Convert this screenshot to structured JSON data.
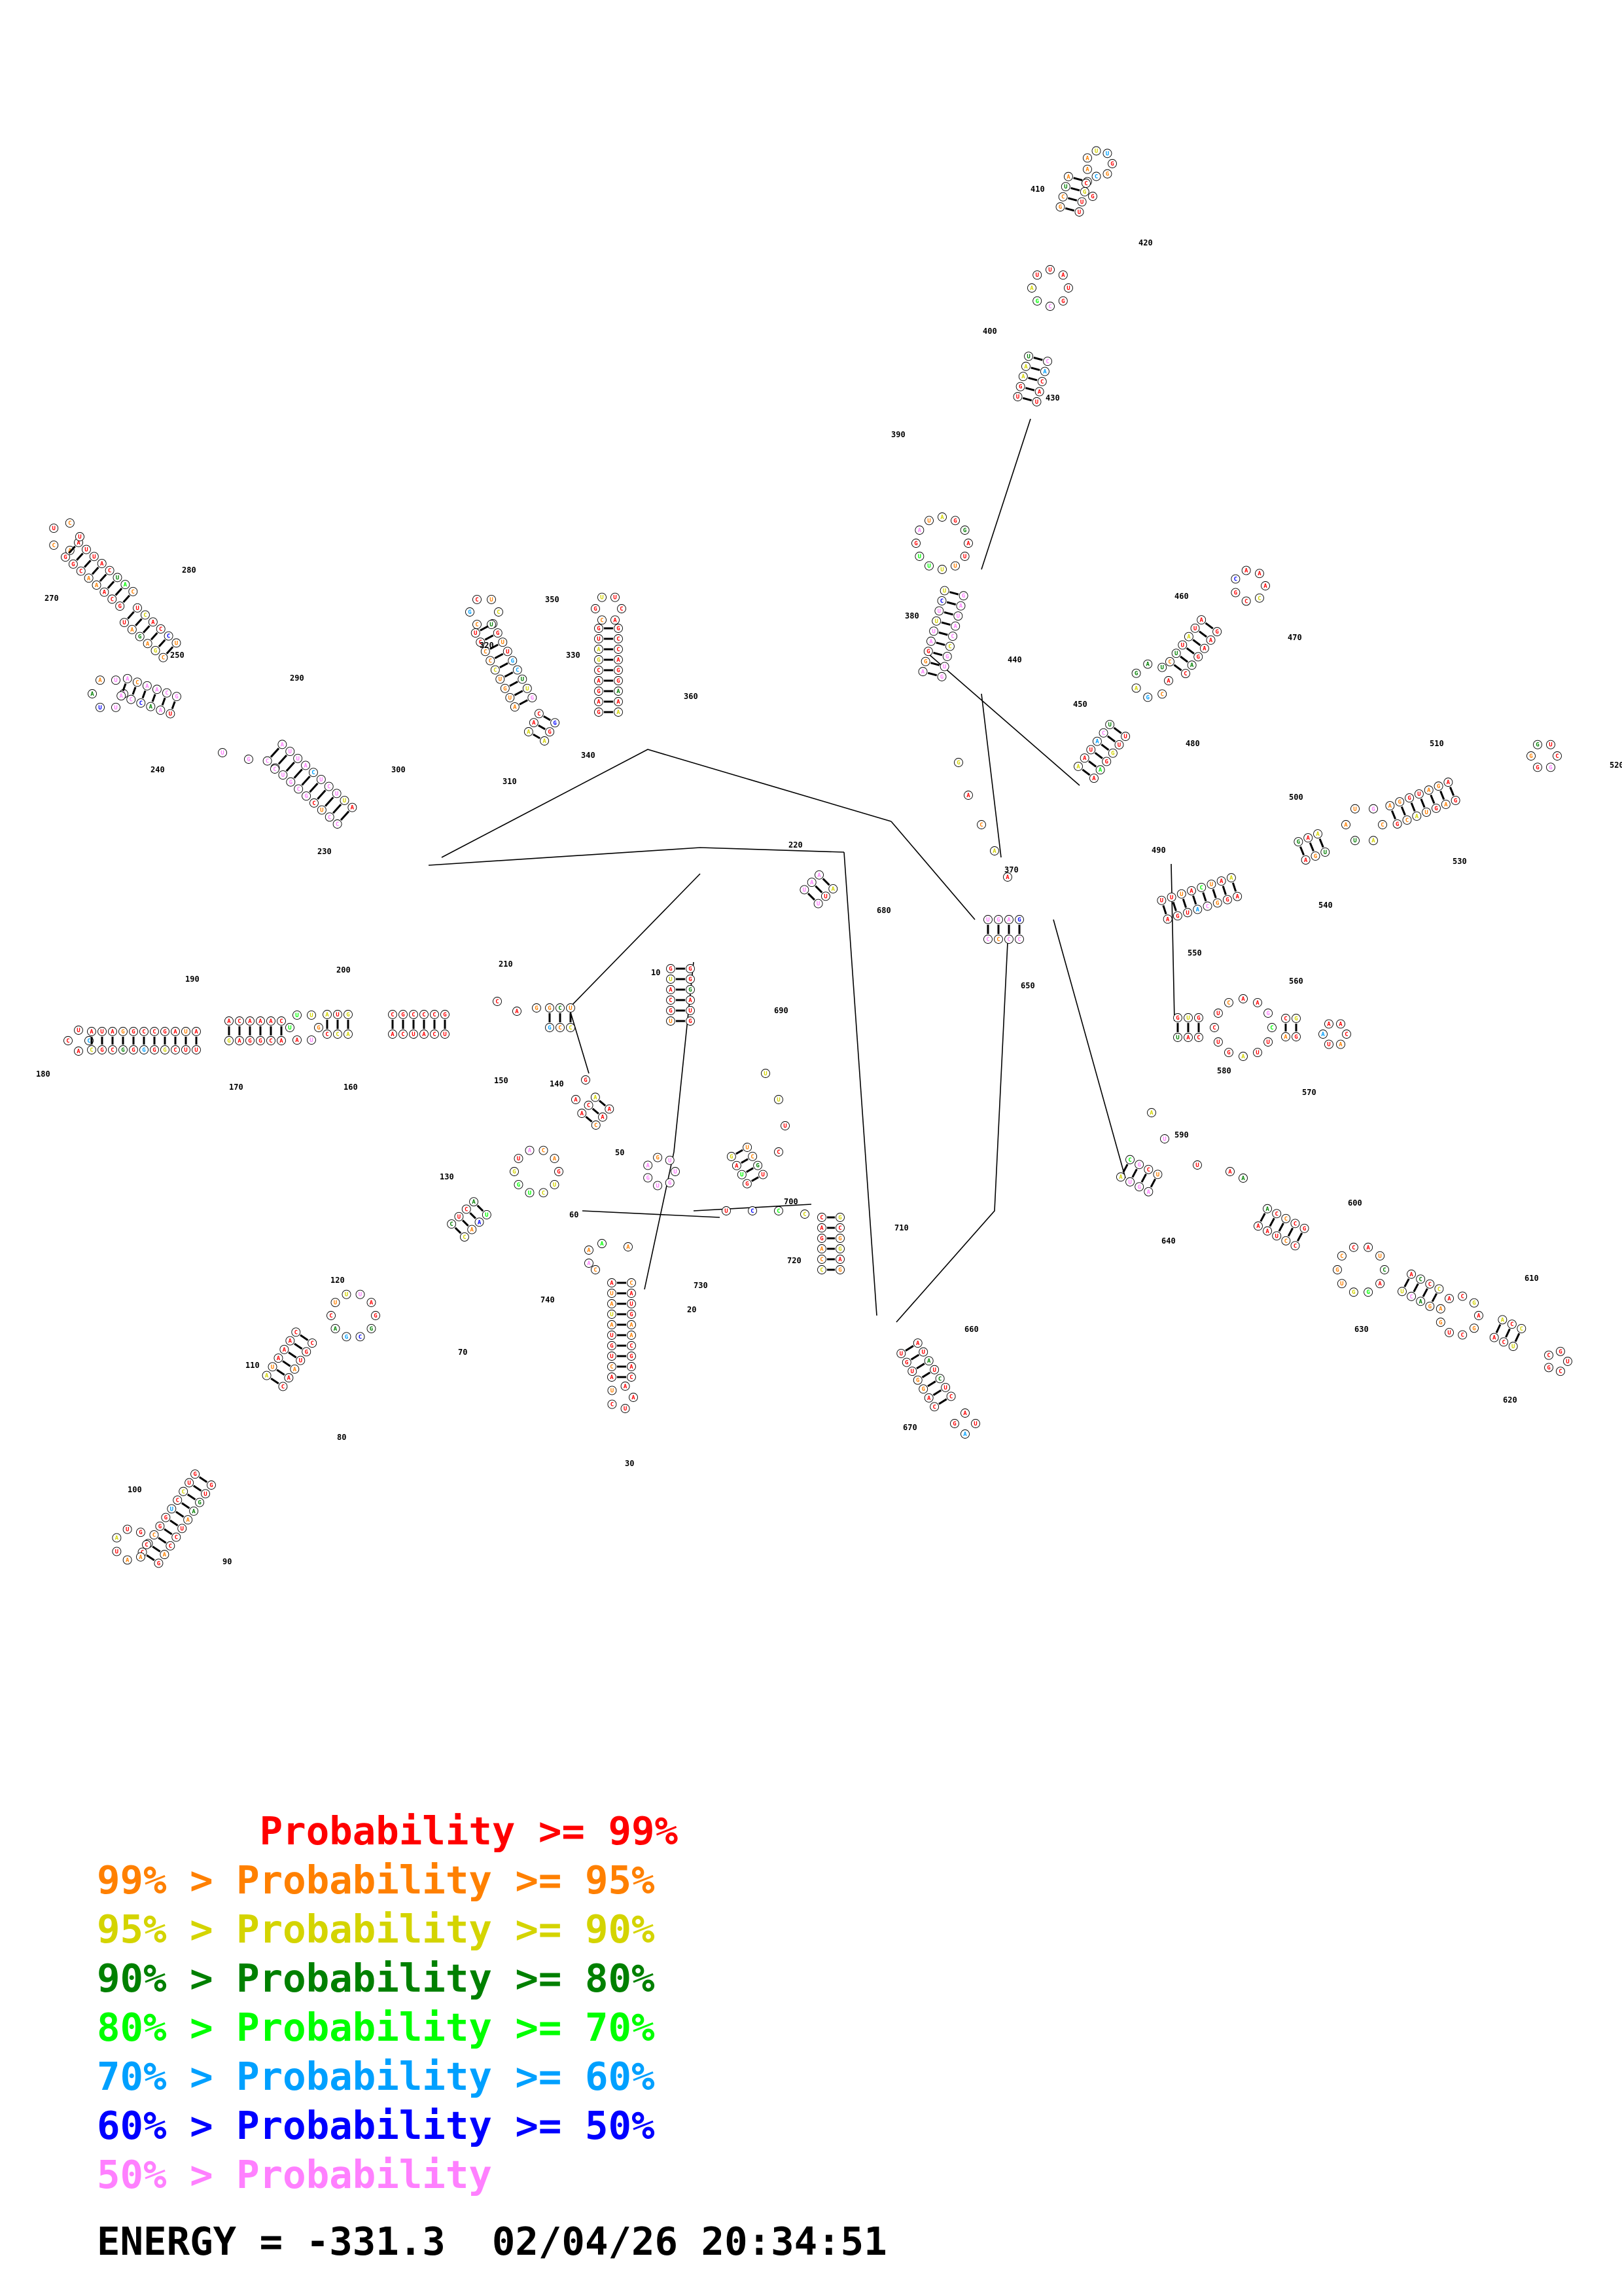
{
  "colors": {
    "p99": "#ff0000",
    "p95": "#ff8000",
    "p90": "#d4d400",
    "p80": "#008000",
    "p70": "#00ff00",
    "p60": "#00a0ff",
    "p50": "#0000ff",
    "plow": "#ff80ff"
  },
  "position_labels": [
    "10",
    "20",
    "30",
    "50",
    "60",
    "70",
    "80",
    "90",
    "100",
    "110",
    "120",
    "130",
    "140",
    "150",
    "160",
    "170",
    "180",
    "190",
    "200",
    "210",
    "220",
    "230",
    "240",
    "250",
    "270",
    "280",
    "290",
    "300",
    "310",
    "320",
    "330",
    "340",
    "350",
    "360",
    "370",
    "380",
    "390",
    "400",
    "410",
    "420",
    "430",
    "440",
    "450",
    "460",
    "470",
    "480",
    "490",
    "500",
    "510",
    "520",
    "530",
    "540",
    "550",
    "560",
    "570",
    "580",
    "590",
    "600",
    "610",
    "620",
    "630",
    "640",
    "650",
    "660",
    "670",
    "680",
    "690",
    "700",
    "710",
    "720",
    "730",
    "740"
  ],
  "legend": [
    {
      "prefix": "       ",
      "text": "Probability >= 99%",
      "color_key": "p99"
    },
    {
      "prefix": "",
      "text": "99% > Probability >= 95%",
      "color_key": "p95"
    },
    {
      "prefix": "",
      "text": "95% > Probability >= 90%",
      "color_key": "p90"
    },
    {
      "prefix": "",
      "text": "90% > Probability >= 80%",
      "color_key": "p80"
    },
    {
      "prefix": "",
      "text": "80% > Probability >= 70%",
      "color_key": "p70"
    },
    {
      "prefix": "",
      "text": "70% > Probability >= 60%",
      "color_key": "p60"
    },
    {
      "prefix": "",
      "text": "60% > Probability >= 50%",
      "color_key": "p50"
    },
    {
      "prefix": "",
      "text": "50% > Probability",
      "color_key": "plow"
    }
  ],
  "energy": "ENERGY = -331.3  02/04/26 20:34:51"
}
